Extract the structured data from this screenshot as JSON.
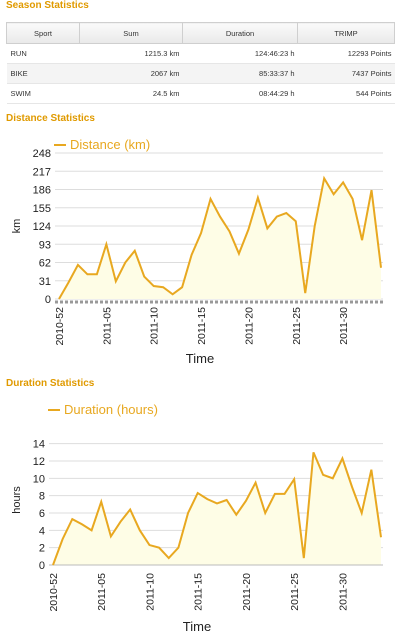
{
  "season": {
    "title": "Season Statistics",
    "headers": [
      "Sport",
      "Sum",
      "Duration",
      "TRIMP"
    ],
    "rows": [
      {
        "sport": "RUN",
        "sum": "1215.3 km",
        "duration": "124:46:23 h",
        "trimp": "12293 Points"
      },
      {
        "sport": "BIKE",
        "sum": "2067 km",
        "duration": "85:33:37 h",
        "trimp": "7437 Points"
      },
      {
        "sport": "SWIM",
        "sum": "24.5 km",
        "duration": "08:44:29 h",
        "trimp": "544 Points"
      }
    ]
  },
  "distance": {
    "title": "Distance Statistics"
  },
  "duration": {
    "title": "Duration Statistics"
  },
  "chart_data": [
    {
      "type": "area",
      "legend": "Distance (km)",
      "xlabel": "Time",
      "ylabel": "km",
      "ylim": [
        0,
        248
      ],
      "yticks": [
        0,
        31,
        62,
        93,
        124,
        155,
        186,
        217,
        248
      ],
      "x_tick_labels": [
        "2010-52",
        "2011-05",
        "2011-10",
        "2011-15",
        "2011-20",
        "2011-25",
        "2011-30"
      ],
      "x_tick_index": [
        0,
        5,
        10,
        15,
        20,
        25,
        30
      ],
      "color": "#e8a820",
      "fill": "#fefde6",
      "values": [
        0,
        28,
        58,
        42,
        42,
        93,
        30,
        62,
        82,
        38,
        22,
        20,
        8,
        20,
        75,
        112,
        170,
        140,
        115,
        77,
        118,
        172,
        120,
        140,
        146,
        132,
        10,
        124,
        205,
        178,
        198,
        170,
        100,
        185,
        53
      ]
    },
    {
      "type": "area",
      "legend": "Duration (hours)",
      "xlabel": "Time",
      "ylabel": "hours",
      "ylim": [
        0,
        15
      ],
      "yticks": [
        0,
        2,
        4,
        6,
        8,
        10,
        12,
        14
      ],
      "x_tick_labels": [
        "2010-52",
        "2011-05",
        "2011-10",
        "2011-15",
        "2011-20",
        "2011-25",
        "2011-30"
      ],
      "x_tick_index": [
        0,
        5,
        10,
        15,
        20,
        25,
        30
      ],
      "color": "#e8a820",
      "fill": "#fefde6",
      "values": [
        0,
        3,
        5.3,
        4.7,
        4,
        7.3,
        3.3,
        5,
        6.4,
        4,
        2.3,
        2,
        0.8,
        2,
        6,
        8.3,
        7.6,
        7.1,
        7.5,
        5.8,
        7.4,
        9.5,
        6,
        8.2,
        8.2,
        9.9,
        0.8,
        13,
        10.4,
        10,
        12.3,
        9,
        6,
        11,
        3.2
      ]
    }
  ]
}
